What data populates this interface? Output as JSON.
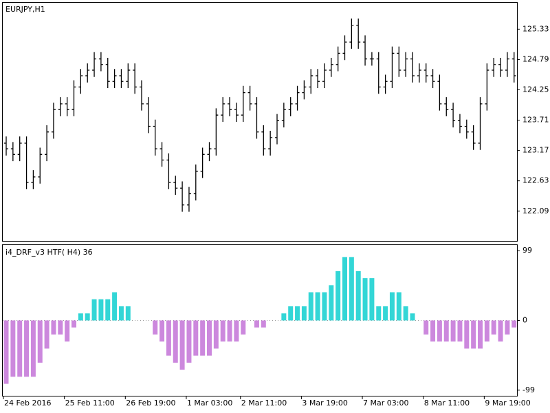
{
  "chart_data": [
    {
      "type": "ohlc",
      "title": "EURJPY,H1",
      "color": "#000000",
      "ylim": [
        121.56,
        125.8
      ],
      "yticks": [
        125.33,
        124.79,
        124.25,
        123.71,
        123.17,
        122.63,
        122.09
      ],
      "open": [
        123.3,
        123.2,
        123.1,
        123.3,
        122.6,
        122.7,
        123.1,
        123.5,
        123.9,
        124.0,
        123.9,
        124.3,
        124.5,
        124.6,
        124.8,
        124.7,
        124.4,
        124.5,
        124.4,
        124.6,
        124.3,
        124.0,
        123.6,
        123.2,
        123.0,
        122.6,
        122.5,
        122.2,
        122.4,
        122.8,
        123.1,
        123.2,
        123.8,
        124.0,
        123.9,
        123.8,
        124.2,
        124.0,
        123.5,
        123.2,
        123.4,
        123.7,
        123.9,
        124.0,
        124.2,
        124.3,
        124.5,
        124.4,
        124.6,
        124.7,
        124.9,
        125.1,
        125.4,
        125.1,
        124.8,
        124.8,
        124.3,
        124.4,
        124.9,
        124.6,
        124.8,
        124.5,
        124.6,
        124.5,
        124.4,
        124.0,
        123.9,
        123.7,
        123.6,
        123.5,
        123.3,
        124.0,
        124.6,
        124.7,
        124.6,
        124.8
      ],
      "high": [
        123.42,
        123.32,
        123.42,
        123.42,
        122.82,
        123.22,
        123.62,
        124.02,
        124.12,
        124.12,
        124.42,
        124.62,
        124.72,
        124.92,
        124.92,
        124.82,
        124.62,
        124.62,
        124.72,
        124.72,
        124.42,
        124.12,
        123.72,
        123.32,
        123.12,
        122.72,
        122.62,
        122.52,
        122.92,
        123.22,
        123.32,
        123.92,
        124.12,
        124.12,
        124.02,
        124.32,
        124.32,
        124.12,
        123.62,
        123.52,
        123.82,
        124.02,
        124.12,
        124.32,
        124.42,
        124.62,
        124.62,
        124.72,
        124.82,
        125.02,
        125.22,
        125.52,
        125.52,
        125.22,
        124.92,
        124.92,
        124.52,
        125.02,
        125.02,
        124.92,
        124.92,
        124.72,
        124.72,
        124.62,
        124.52,
        124.12,
        124.02,
        123.82,
        123.72,
        123.62,
        124.12,
        124.72,
        124.82,
        124.82,
        124.92,
        124.92
      ],
      "low": [
        123.08,
        122.98,
        122.98,
        122.48,
        122.48,
        122.58,
        122.98,
        123.38,
        123.78,
        123.78,
        123.78,
        124.18,
        124.38,
        124.48,
        124.58,
        124.28,
        124.28,
        124.28,
        124.28,
        124.18,
        123.88,
        123.48,
        123.08,
        122.88,
        122.48,
        122.38,
        122.08,
        122.08,
        122.28,
        122.68,
        122.98,
        123.08,
        123.68,
        123.78,
        123.68,
        123.68,
        123.88,
        123.38,
        123.08,
        123.08,
        123.28,
        123.58,
        123.78,
        123.88,
        124.08,
        124.18,
        124.28,
        124.28,
        124.48,
        124.58,
        124.78,
        124.98,
        124.98,
        124.68,
        124.68,
        124.18,
        124.18,
        124.28,
        124.48,
        124.48,
        124.38,
        124.38,
        124.38,
        124.28,
        123.88,
        123.78,
        123.58,
        123.48,
        123.38,
        123.18,
        123.18,
        123.88,
        124.48,
        124.48,
        124.48,
        124.38
      ],
      "close": [
        123.2,
        123.1,
        123.3,
        122.6,
        122.7,
        123.1,
        123.5,
        123.9,
        124.0,
        123.9,
        124.3,
        124.5,
        124.6,
        124.8,
        124.7,
        124.4,
        124.5,
        124.4,
        124.6,
        124.3,
        124.0,
        123.6,
        123.2,
        123.0,
        122.6,
        122.5,
        122.2,
        122.4,
        122.8,
        123.1,
        123.2,
        123.8,
        124.0,
        123.9,
        123.8,
        124.2,
        124.0,
        123.5,
        123.2,
        123.4,
        123.7,
        123.9,
        124.0,
        124.2,
        124.3,
        124.5,
        124.4,
        124.6,
        124.7,
        124.9,
        125.1,
        125.4,
        125.1,
        124.8,
        124.8,
        124.3,
        124.4,
        124.9,
        124.6,
        124.8,
        124.5,
        124.6,
        124.5,
        124.4,
        124.0,
        123.9,
        123.7,
        123.6,
        123.5,
        123.3,
        124.0,
        124.6,
        124.7,
        124.6,
        124.8,
        124.5
      ]
    },
    {
      "type": "bar",
      "title": "i4_DRF_v3 HTF( H4) 36",
      "up_color": "#33d6d6",
      "down_color": "#cc88dd",
      "zero_line": true,
      "ylim": [
        -107,
        107
      ],
      "yticks": [
        99,
        0,
        -99
      ],
      "categories": [
        "24 Feb 2016",
        null,
        null,
        null,
        null,
        null,
        null,
        null,
        null,
        "25 Feb 11:00",
        null,
        null,
        null,
        null,
        null,
        null,
        null,
        null,
        "26 Feb 19:00",
        null,
        null,
        null,
        null,
        null,
        null,
        null,
        null,
        "1 Mar 03:00",
        null,
        null,
        null,
        null,
        null,
        null,
        null,
        "2 Mar 11:00",
        null,
        null,
        null,
        null,
        null,
        null,
        null,
        null,
        "3 Mar 19:00",
        null,
        null,
        null,
        null,
        null,
        null,
        null,
        null,
        "7 Mar 03:00",
        null,
        null,
        null,
        null,
        null,
        null,
        null,
        null,
        "8 Mar 11:00",
        null,
        null,
        null,
        null,
        null,
        null,
        null,
        null,
        "9 Mar 19:00",
        null,
        null,
        null,
        null
      ],
      "values": [
        -90,
        -80,
        -80,
        -80,
        -80,
        -60,
        -40,
        -20,
        -20,
        -30,
        -10,
        10,
        10,
        30,
        30,
        30,
        40,
        20,
        20,
        0,
        0,
        0,
        -20,
        -30,
        -50,
        -60,
        -70,
        -60,
        -50,
        -50,
        -50,
        -40,
        -30,
        -30,
        -30,
        -20,
        0,
        -10,
        -10,
        0,
        0,
        10,
        20,
        20,
        20,
        40,
        40,
        40,
        50,
        70,
        90,
        90,
        70,
        60,
        60,
        20,
        20,
        40,
        40,
        20,
        10,
        0,
        -20,
        -30,
        -30,
        -30,
        -30,
        -30,
        -40,
        -40,
        -40,
        -30,
        -20,
        -30,
        -20,
        -10
      ]
    }
  ]
}
